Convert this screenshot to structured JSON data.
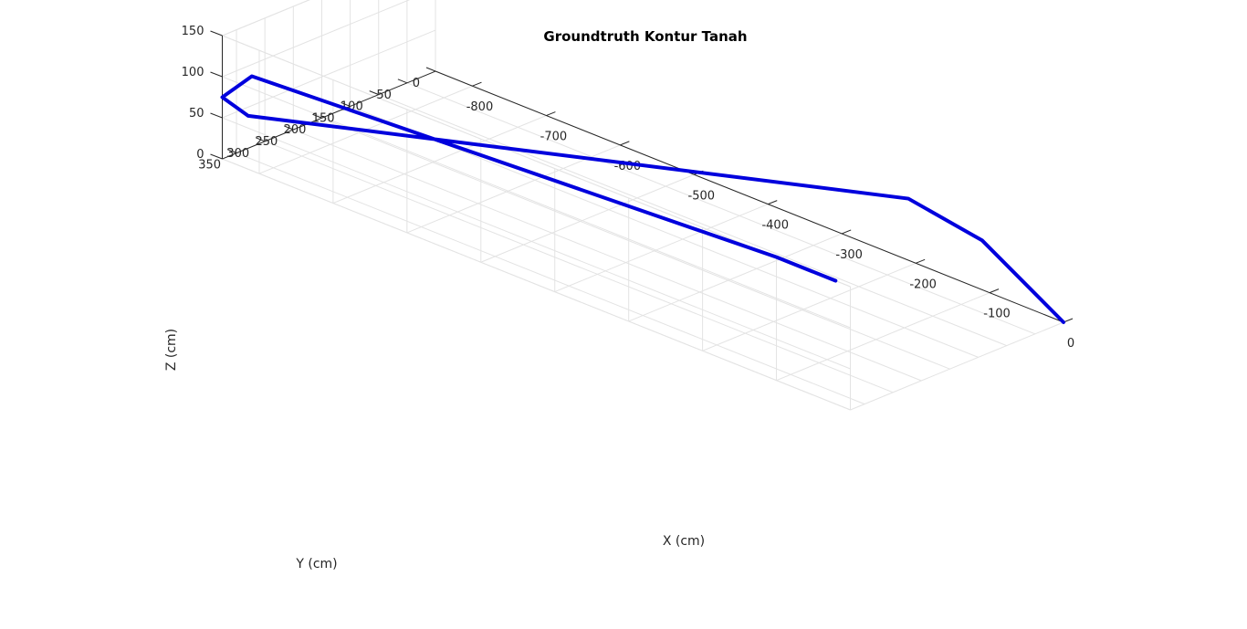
{
  "chart_data": {
    "type": "line",
    "title": "Groundtruth Kontur Tanah",
    "xlabel": "X (cm)",
    "ylabel": "Y (cm)",
    "zlabel": "Z (cm)",
    "xlim": [
      -850,
      0
    ],
    "ylim": [
      0,
      375
    ],
    "zlim": [
      0,
      150
    ],
    "xticks": [
      -800,
      -700,
      -600,
      -500,
      -400,
      -300,
      -200,
      -100,
      0
    ],
    "yticks": [
      0,
      50,
      100,
      150,
      200,
      250,
      300,
      350
    ],
    "zticks": [
      0,
      50,
      100,
      150
    ],
    "grid": true,
    "line_color": "#0000dd",
    "series": [
      {
        "x": [
          0,
          -110,
          -210,
          -815,
          -850,
          -850,
          -810,
          -100,
          -20
        ],
        "y": [
          0,
          0,
          0,
          375,
          375,
          375,
          375,
          375,
          375
        ],
        "z": [
          0,
          60,
          75,
          65,
          75,
          75,
          115,
          150,
          150
        ]
      }
    ]
  }
}
